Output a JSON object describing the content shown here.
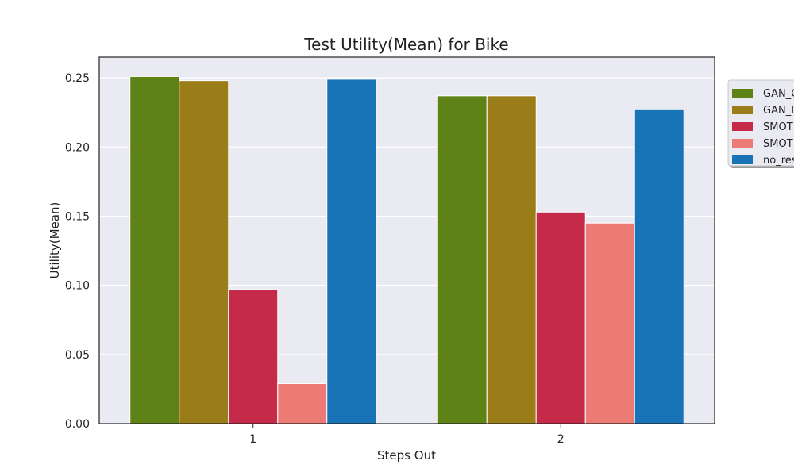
{
  "chart_data": {
    "type": "bar",
    "title": "Test Utility(Mean) for Bike",
    "xlabel": "Steps Out",
    "ylabel": "Utility(Mean)",
    "categories": [
      "1",
      "2"
    ],
    "ylim": [
      0,
      0.265
    ],
    "yticks": [
      "0.00",
      "0.05",
      "0.10",
      "0.15",
      "0.20",
      "0.25"
    ],
    "grid": true,
    "legend_position": "right, partially clipped",
    "series": [
      {
        "name": "GAN_C",
        "color": "#5f8216",
        "values": [
          0.251,
          0.237
        ]
      },
      {
        "name": "GAN_I",
        "color": "#9a7c18",
        "values": [
          0.248,
          0.237
        ]
      },
      {
        "name": "SMOT",
        "color": "#c52a49",
        "values": [
          0.097,
          0.153
        ]
      },
      {
        "name": "SMOT",
        "color": "#ec7b75",
        "values": [
          0.029,
          0.145
        ]
      },
      {
        "name": "no_res",
        "color": "#1874b6",
        "values": [
          0.249,
          0.227
        ]
      }
    ]
  }
}
